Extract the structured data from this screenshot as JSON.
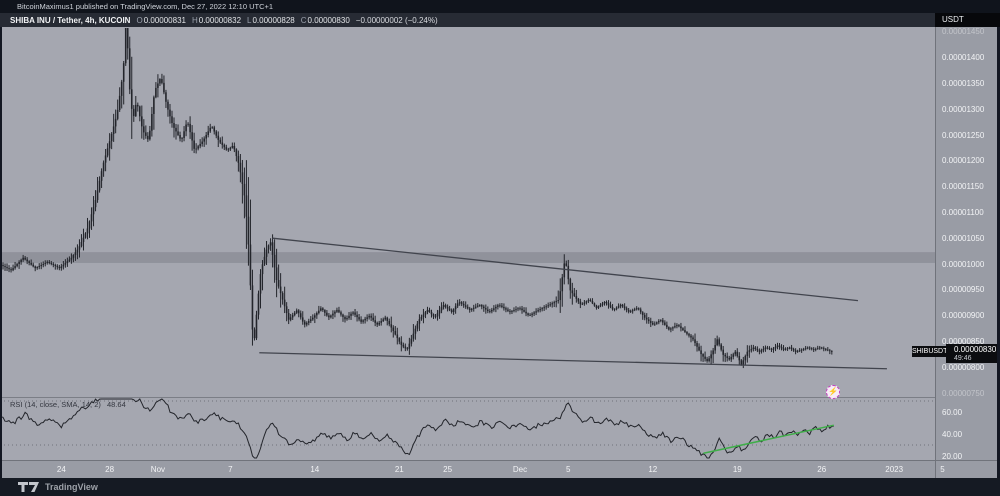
{
  "header": {
    "publish_line": "BitcoinMaximus1 published on TradingView.com, Dec 27, 2022 12:10 UTC+1",
    "symbol_title": "SHIBA INU / Tether, 4h, KUCOIN",
    "ohlc": [
      {
        "k": "O",
        "v": "0.00000831"
      },
      {
        "k": "H",
        "v": "0.00000832"
      },
      {
        "k": "L",
        "v": "0.00000828"
      },
      {
        "k": "C",
        "v": "0.00000830"
      }
    ],
    "change": "−0.00000002 (−0.24%)",
    "quote_currency": "USDT"
  },
  "price_label": {
    "tag": "SHIBUSDT",
    "price": "0.00000830",
    "countdown": "49:46"
  },
  "rsi_legend": {
    "label": "RSI (14, close, SMA, 14, 2)",
    "value": "48.64"
  },
  "sticker": {
    "icon": "⚡"
  },
  "footer": {
    "brand": "TradingView"
  },
  "colors": {
    "background_dark": "#131722",
    "chart_gray": "#a5a7b0",
    "candle": "#23252b",
    "trendline": "#41444d",
    "rsi_trendline_green": "#3fae49",
    "sticker_magenta": "#c43fc0",
    "price_label_bg": "#0c0d10"
  },
  "chart_data": [
    {
      "type": "candlestick",
      "title": "SHIBA INU / Tether, 4h, KUCOIN",
      "note": "prices stored as USDT x 1e8; x stored as days since first visible bar (2022-10-19); 6 bars per day",
      "ylim_e8": [
        740,
        1490
      ],
      "grid": false,
      "y_ticks": [
        {
          "label": "0.00001450",
          "v": 1450,
          "faint": true
        },
        {
          "label": "0.00001400",
          "v": 1400
        },
        {
          "label": "0.00001350",
          "v": 1350
        },
        {
          "label": "0.00001300",
          "v": 1300
        },
        {
          "label": "0.00001250",
          "v": 1250
        },
        {
          "label": "0.00001200",
          "v": 1200
        },
        {
          "label": "0.00001150",
          "v": 1150
        },
        {
          "label": "0.00001100",
          "v": 1100
        },
        {
          "label": "0.00001050",
          "v": 1050
        },
        {
          "label": "0.00001000",
          "v": 1000
        },
        {
          "label": "0.00000950",
          "v": 950
        },
        {
          "label": "0.00000900",
          "v": 900
        },
        {
          "label": "0.00000850",
          "v": 850
        },
        {
          "label": "0.00000800",
          "v": 800
        },
        {
          "label": "0.00000750",
          "v": 750,
          "faint": true
        }
      ],
      "x_ticks": [
        {
          "label": "24",
          "day": 5
        },
        {
          "label": "28",
          "day": 9
        },
        {
          "label": "Nov",
          "day": 13
        },
        {
          "label": "7",
          "day": 19
        },
        {
          "label": "14",
          "day": 26
        },
        {
          "label": "21",
          "day": 33
        },
        {
          "label": "25",
          "day": 37
        },
        {
          "label": "Dec",
          "day": 43
        },
        {
          "label": "5",
          "day": 47
        },
        {
          "label": "12",
          "day": 54
        },
        {
          "label": "19",
          "day": 61
        },
        {
          "label": "26",
          "day": 68
        },
        {
          "label": "2023",
          "day": 74
        },
        {
          "label": "5",
          "day": 78
        }
      ],
      "resistance_zone_e8": [
        1002,
        1023
      ],
      "trendlines": [
        {
          "name": "descending-resistance-line",
          "from": [
            22.5,
            1050
          ],
          "to": [
            71,
            929
          ]
        },
        {
          "name": "support-line",
          "from": [
            21.4,
            828
          ],
          "to": [
            73.4,
            797
          ]
        }
      ],
      "last_price_e8": 830,
      "path": [
        [
          0,
          1000
        ],
        [
          1,
          988
        ],
        [
          2,
          1012
        ],
        [
          3,
          992
        ],
        [
          4,
          1004
        ],
        [
          5,
          992
        ],
        [
          6,
          1012
        ],
        [
          6.6,
          1031
        ],
        [
          7.3,
          1066
        ],
        [
          8,
          1124
        ],
        [
          8.6,
          1191
        ],
        [
          9.3,
          1249
        ],
        [
          9.8,
          1293
        ],
        [
          10.3,
          1375
        ],
        [
          10.55,
          1481
        ],
        [
          10.8,
          1346
        ],
        [
          11.1,
          1278
        ],
        [
          11.4,
          1317
        ],
        [
          11.9,
          1259
        ],
        [
          12.4,
          1239
        ],
        [
          12.9,
          1336
        ],
        [
          13.4,
          1362
        ],
        [
          13.9,
          1307
        ],
        [
          14.4,
          1268
        ],
        [
          15.1,
          1239
        ],
        [
          15.6,
          1278
        ],
        [
          16.2,
          1220
        ],
        [
          16.9,
          1239
        ],
        [
          17.6,
          1268
        ],
        [
          18.2,
          1239
        ],
        [
          18.9,
          1220
        ],
        [
          19.4,
          1230
        ],
        [
          19.9,
          1191
        ],
        [
          20.4,
          1124
        ],
        [
          20.7,
          1027
        ],
        [
          21,
          873
        ],
        [
          21.1,
          838
        ],
        [
          21.4,
          920
        ],
        [
          21.7,
          988
        ],
        [
          22.2,
          1031
        ],
        [
          22.5,
          1042
        ],
        [
          23,
          969
        ],
        [
          23.5,
          931
        ],
        [
          24,
          892
        ],
        [
          24.7,
          911
        ],
        [
          25.3,
          882
        ],
        [
          26,
          896
        ],
        [
          26.7,
          915
        ],
        [
          27.3,
          896
        ],
        [
          28,
          911
        ],
        [
          28.7,
          892
        ],
        [
          29.3,
          907
        ],
        [
          30,
          888
        ],
        [
          30.7,
          900
        ],
        [
          31.3,
          882
        ],
        [
          32,
          896
        ],
        [
          32.6,
          873
        ],
        [
          33.3,
          844
        ],
        [
          33.8,
          834
        ],
        [
          34.3,
          863
        ],
        [
          34.8,
          892
        ],
        [
          35.5,
          911
        ],
        [
          36.1,
          896
        ],
        [
          36.8,
          921
        ],
        [
          37.5,
          907
        ],
        [
          38.1,
          927
        ],
        [
          39,
          911
        ],
        [
          39.8,
          921
        ],
        [
          40.6,
          907
        ],
        [
          41.4,
          921
        ],
        [
          42.3,
          907
        ],
        [
          43.1,
          915
        ],
        [
          43.9,
          900
        ],
        [
          44.7,
          911
        ],
        [
          45.6,
          921
        ],
        [
          46.4,
          931
        ],
        [
          46.9,
          1012
        ],
        [
          47.3,
          950
        ],
        [
          47.6,
          940
        ],
        [
          48.2,
          921
        ],
        [
          48.9,
          931
        ],
        [
          49.5,
          915
        ],
        [
          50.2,
          927
        ],
        [
          50.9,
          911
        ],
        [
          51.5,
          921
        ],
        [
          52.2,
          907
        ],
        [
          52.9,
          915
        ],
        [
          53.5,
          896
        ],
        [
          54.2,
          882
        ],
        [
          54.8,
          892
        ],
        [
          55.5,
          873
        ],
        [
          56.2,
          882
        ],
        [
          56.8,
          869
        ],
        [
          57.5,
          854
        ],
        [
          58.2,
          824
        ],
        [
          58.7,
          811
        ],
        [
          59.2,
          834
        ],
        [
          59.5,
          854
        ],
        [
          60,
          824
        ],
        [
          60.5,
          815
        ],
        [
          61,
          830
        ],
        [
          61.5,
          805
        ],
        [
          62,
          830
        ],
        [
          62.5,
          838
        ],
        [
          63,
          830
        ],
        [
          63.5,
          838
        ],
        [
          64,
          834
        ],
        [
          64.5,
          842
        ],
        [
          65,
          834
        ],
        [
          65.5,
          838
        ],
        [
          66,
          830
        ],
        [
          66.5,
          834
        ],
        [
          67,
          838
        ],
        [
          67.5,
          834
        ],
        [
          68,
          838
        ],
        [
          68.5,
          834
        ],
        [
          69,
          830
        ]
      ]
    },
    {
      "type": "line",
      "title": "RSI (14, close, SMA, 14, 2)",
      "ylim": [
        10,
        90
      ],
      "y_ticks": [
        {
          "label": "60.00",
          "v": 60
        },
        {
          "label": "40.00",
          "v": 40
        },
        {
          "label": "20.00",
          "v": 20
        }
      ],
      "levels": [
        70,
        30
      ],
      "last_value": 48.64,
      "trendline": {
        "name": "rsi-support-trendline",
        "from": [
          58.2,
          22.5
        ],
        "to": [
          69,
          48
        ]
      },
      "path": [
        [
          0,
          55
        ],
        [
          1,
          50
        ],
        [
          2,
          58
        ],
        [
          3,
          48
        ],
        [
          4,
          54
        ],
        [
          5,
          47
        ],
        [
          6,
          57
        ],
        [
          6.6,
          62
        ],
        [
          7.3,
          66
        ],
        [
          8,
          71
        ],
        [
          8.6,
          74
        ],
        [
          9.3,
          76
        ],
        [
          9.8,
          78
        ],
        [
          10.3,
          82
        ],
        [
          10.55,
          85
        ],
        [
          11.1,
          68
        ],
        [
          11.4,
          73
        ],
        [
          11.9,
          64
        ],
        [
          12.4,
          60
        ],
        [
          12.9,
          70
        ],
        [
          13.4,
          73
        ],
        [
          13.9,
          63
        ],
        [
          14.4,
          57
        ],
        [
          15.1,
          53
        ],
        [
          15.6,
          60
        ],
        [
          16.2,
          50
        ],
        [
          16.9,
          54
        ],
        [
          17.6,
          59
        ],
        [
          18.2,
          54
        ],
        [
          18.9,
          50
        ],
        [
          19.4,
          52
        ],
        [
          19.9,
          45
        ],
        [
          20.4,
          36
        ],
        [
          21,
          15
        ],
        [
          21.4,
          24
        ],
        [
          21.7,
          36
        ],
        [
          22.2,
          46
        ],
        [
          22.5,
          51
        ],
        [
          23,
          41
        ],
        [
          23.5,
          36
        ],
        [
          24,
          30
        ],
        [
          24.7,
          36
        ],
        [
          25.3,
          30
        ],
        [
          26,
          34
        ],
        [
          26.7,
          41
        ],
        [
          27.3,
          36
        ],
        [
          28,
          41
        ],
        [
          28.7,
          35
        ],
        [
          29.3,
          41
        ],
        [
          30,
          35
        ],
        [
          30.7,
          40
        ],
        [
          31.3,
          34
        ],
        [
          32,
          39
        ],
        [
          32.6,
          32
        ],
        [
          33.3,
          25
        ],
        [
          33.8,
          22
        ],
        [
          34.3,
          33
        ],
        [
          34.8,
          42
        ],
        [
          35.5,
          49
        ],
        [
          36.1,
          44
        ],
        [
          36.8,
          52
        ],
        [
          37.5,
          47
        ],
        [
          38.1,
          53
        ],
        [
          39,
          47
        ],
        [
          39.8,
          51
        ],
        [
          40.6,
          46
        ],
        [
          41.4,
          51
        ],
        [
          42.3,
          46
        ],
        [
          43.1,
          50
        ],
        [
          43.9,
          44
        ],
        [
          44.7,
          49
        ],
        [
          45.6,
          52
        ],
        [
          46.4,
          56
        ],
        [
          46.9,
          68
        ],
        [
          47.6,
          58
        ],
        [
          48.2,
          50
        ],
        [
          48.9,
          54
        ],
        [
          49.5,
          49
        ],
        [
          50.2,
          53
        ],
        [
          50.9,
          48
        ],
        [
          51.5,
          52
        ],
        [
          52.2,
          46
        ],
        [
          52.9,
          49
        ],
        [
          53.5,
          41
        ],
        [
          54.2,
          36
        ],
        [
          54.8,
          40
        ],
        [
          55.5,
          33
        ],
        [
          56.2,
          37
        ],
        [
          56.8,
          32
        ],
        [
          57.5,
          26
        ],
        [
          58.2,
          20
        ],
        [
          58.7,
          17
        ],
        [
          59.2,
          28
        ],
        [
          59.5,
          35
        ],
        [
          60,
          25
        ],
        [
          60.5,
          22
        ],
        [
          61,
          30
        ],
        [
          61.5,
          24
        ],
        [
          62,
          33
        ],
        [
          62.5,
          38
        ],
        [
          63,
          34
        ],
        [
          63.5,
          40
        ],
        [
          64,
          36
        ],
        [
          64.5,
          42
        ],
        [
          65,
          38
        ],
        [
          65.5,
          43
        ],
        [
          66,
          39
        ],
        [
          66.5,
          44
        ],
        [
          67,
          41
        ],
        [
          67.5,
          45
        ],
        [
          68,
          42
        ],
        [
          68.5,
          46
        ],
        [
          69,
          48.6
        ]
      ]
    }
  ]
}
